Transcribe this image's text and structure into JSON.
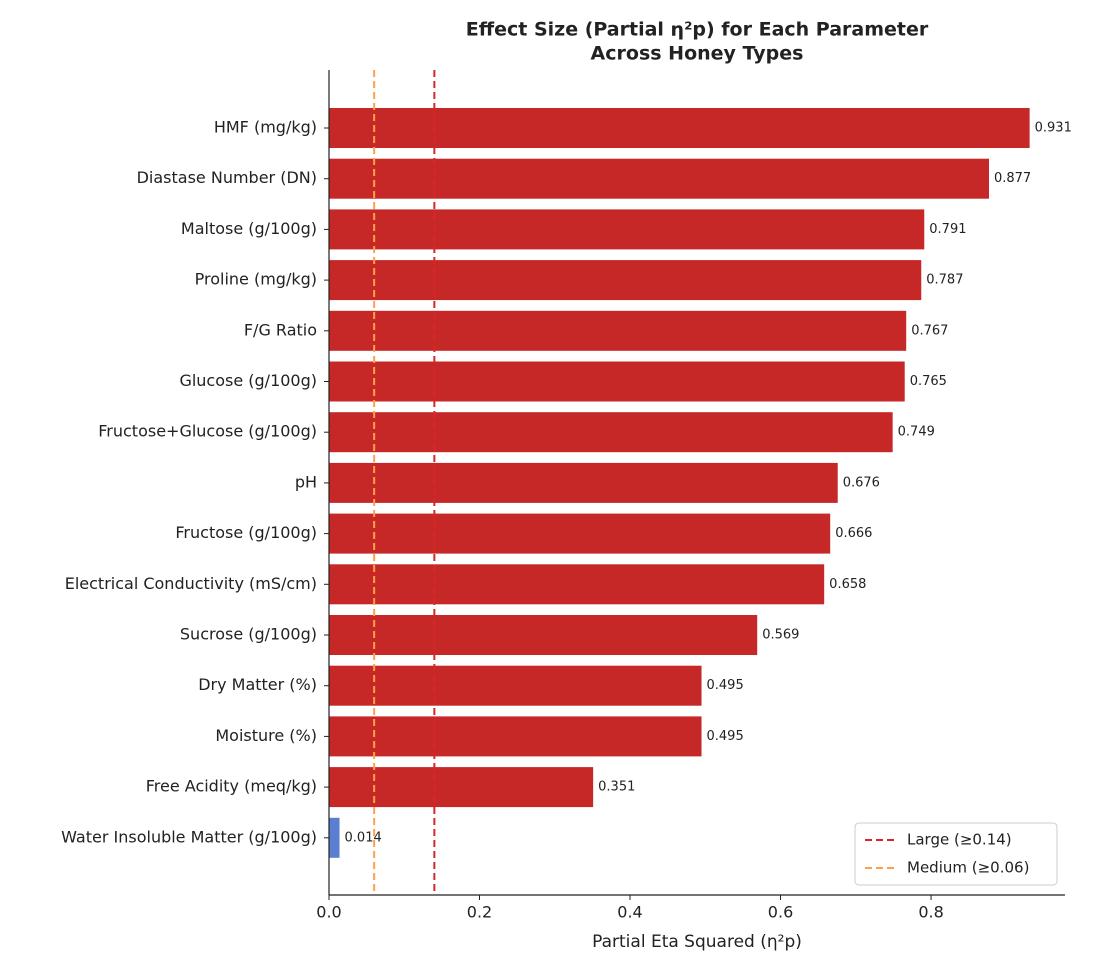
{
  "chart_data": {
    "type": "bar",
    "orientation": "horizontal",
    "title": [
      "Effect Size (Partial η²p) for Each Parameter",
      "Across Honey Types"
    ],
    "xlabel": "Partial Eta Squared (η²p)",
    "categories": [
      "HMF (mg/kg)",
      "Diastase Number (DN)",
      "Maltose (g/100g)",
      "Proline (mg/kg)",
      "F/G Ratio",
      "Glucose (g/100g)",
      "Fructose+Glucose (g/100g)",
      "pH",
      "Fructose (g/100g)",
      "Electrical Conductivity (mS/cm)",
      "Sucrose (g/100g)",
      "Dry Matter (%)",
      "Moisture (%)",
      "Free Acidity (meq/kg)",
      "Water Insoluble Matter (g/100g)"
    ],
    "values": [
      0.931,
      0.877,
      0.791,
      0.787,
      0.767,
      0.765,
      0.749,
      0.676,
      0.666,
      0.658,
      0.569,
      0.495,
      0.495,
      0.351,
      0.014
    ],
    "colors": [
      "#c62828",
      "#c62828",
      "#c62828",
      "#c62828",
      "#c62828",
      "#c62828",
      "#c62828",
      "#c62828",
      "#c62828",
      "#c62828",
      "#c62828",
      "#c62828",
      "#c62828",
      "#c62828",
      "#5b7fd0"
    ],
    "xlim": [
      0,
      0.978
    ],
    "xticks": [
      {
        "value": 0,
        "label": "0.0"
      },
      0.2,
      0.4,
      0.6,
      0.8
    ],
    "reference_lines": [
      {
        "name": "Large (≥0.14)",
        "value": 0.14,
        "color": "#d62728"
      },
      {
        "name": "Medium (≥0.06)",
        "value": 0.06,
        "color": "#ff9f4a"
      }
    ],
    "legend": "lower right"
  }
}
